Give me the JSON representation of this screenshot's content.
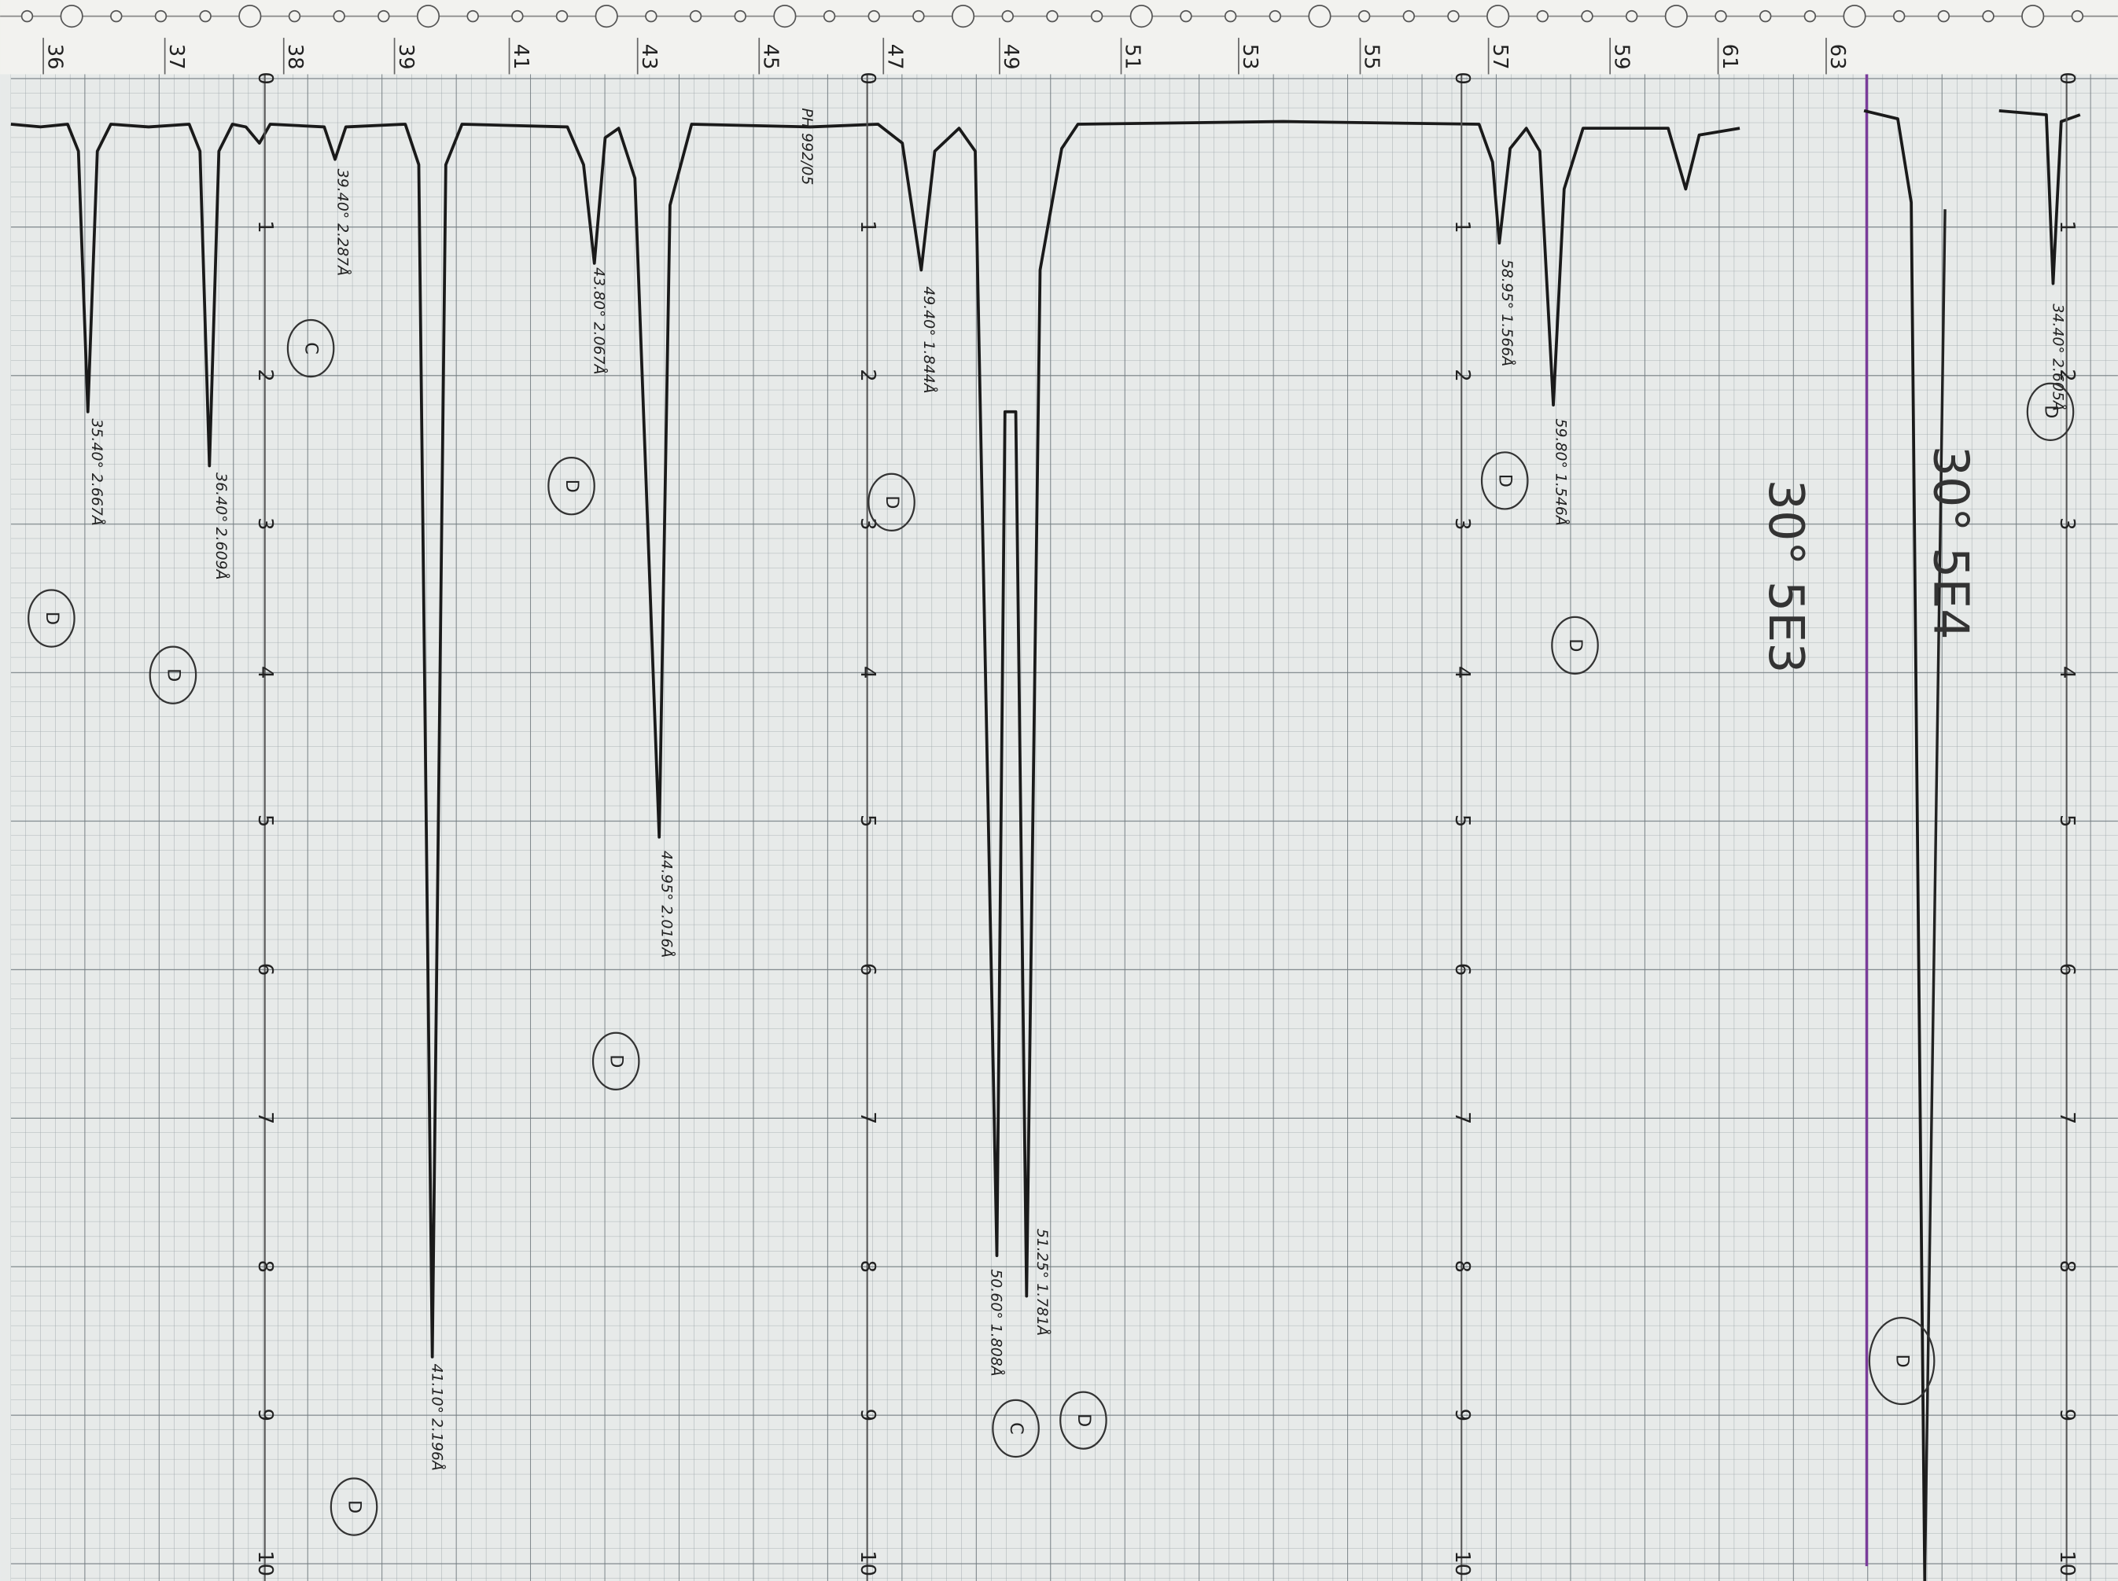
{
  "scale_labels": [
    0,
    1,
    2,
    3,
    4,
    5,
    6,
    7,
    8,
    9,
    10
  ],
  "degree_labels": [
    "36",
    "37",
    "38",
    "39",
    "41",
    "43",
    "45",
    "47",
    "49",
    "51",
    "53",
    "55",
    "57",
    "59",
    "61",
    "63"
  ],
  "stamp": "PH 992/05",
  "annotations": [
    {
      "text": "35.40° 2.667Å",
      "mark": "D"
    },
    {
      "text": "36.40° 2.609Å",
      "mark": "D"
    },
    {
      "text": "39.40° 2.287Å",
      "mark": "C"
    },
    {
      "text": "41.10° 2.196Å",
      "mark": "D"
    },
    {
      "text": "43.80° 2.067Å",
      "mark": "D"
    },
    {
      "text": "44.95° 2.016Å",
      "mark": "D"
    },
    {
      "text": "49.40° 1.844Å",
      "mark": "D"
    },
    {
      "text": "50.60° 1.808Å",
      "mark": "C"
    },
    {
      "text": "51.25° 1.781Å",
      "mark": "D"
    },
    {
      "text": "58.95° 1.566Å",
      "mark": "D"
    },
    {
      "text": "59.80° 1.546Å",
      "mark": "D"
    },
    {
      "text": "34.40° 2.605Å",
      "mark": "D"
    }
  ],
  "notes": [
    "30° 5E3",
    "30° 5E4"
  ],
  "final_mark": "D"
}
